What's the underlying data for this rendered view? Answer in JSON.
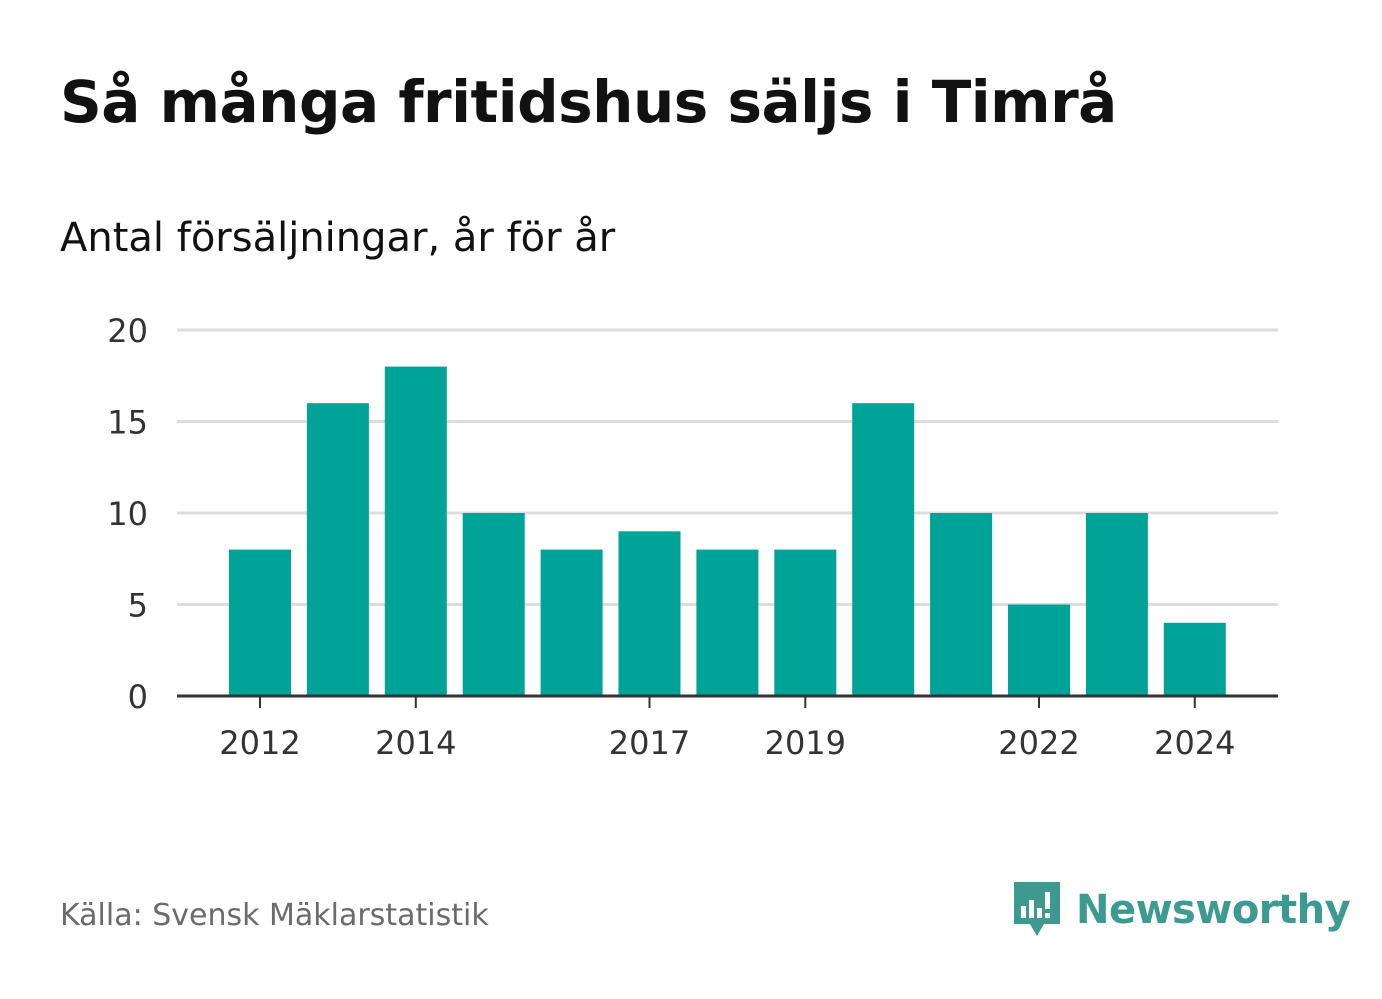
{
  "header": {
    "title": "Så många fritidshus säljs i Timrå",
    "subtitle": "Antal försäljningar, år för år"
  },
  "footer": {
    "source": "Källa: Svensk Mäklarstatistik",
    "brand": "Newsworthy",
    "brand_icon": "newsworthy-logo-icon"
  },
  "colors": {
    "bar": "#00a398",
    "grid": "#dddddd",
    "axis": "#333333",
    "brand": "#3d9a90"
  },
  "chart_data": {
    "type": "bar",
    "title": "Så många fritidshus säljs i Timrå",
    "subtitle": "Antal försäljningar, år för år",
    "xlabel": "",
    "ylabel": "",
    "categories": [
      "2012",
      "2013",
      "2014",
      "2015",
      "2016",
      "2017",
      "2018",
      "2019",
      "2020",
      "2021",
      "2022",
      "2023",
      "2024"
    ],
    "values": [
      8,
      16,
      18,
      10,
      8,
      9,
      8,
      8,
      16,
      10,
      5,
      10,
      4
    ],
    "x_tick_labels": [
      "2012",
      "2014",
      "2017",
      "2019",
      "2022",
      "2024"
    ],
    "y_ticks": [
      0,
      5,
      10,
      15,
      20
    ],
    "ylim": [
      0,
      20
    ],
    "grid": true,
    "legend": "none"
  }
}
